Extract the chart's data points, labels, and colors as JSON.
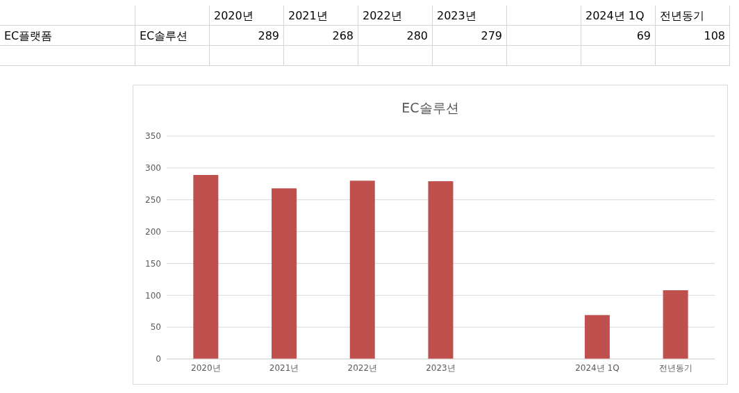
{
  "chart_data": {
    "type": "bar",
    "title": "EC솔루션",
    "categories": [
      "2020년",
      "2021년",
      "2022년",
      "2023년",
      null,
      "2024년 1Q",
      "전년동기"
    ],
    "series": [
      {
        "color": "#c0504d",
        "values": [
          289,
          268,
          280,
          279,
          null,
          69,
          108
        ]
      }
    ],
    "ylim": [
      0,
      350
    ],
    "yticks": [
      0,
      50,
      100,
      150,
      200,
      250,
      300,
      350
    ],
    "grid": "y",
    "annotations": [
      "EC플랫폼",
      "289",
      "268",
      "280",
      "279",
      "69",
      "108"
    ]
  }
}
